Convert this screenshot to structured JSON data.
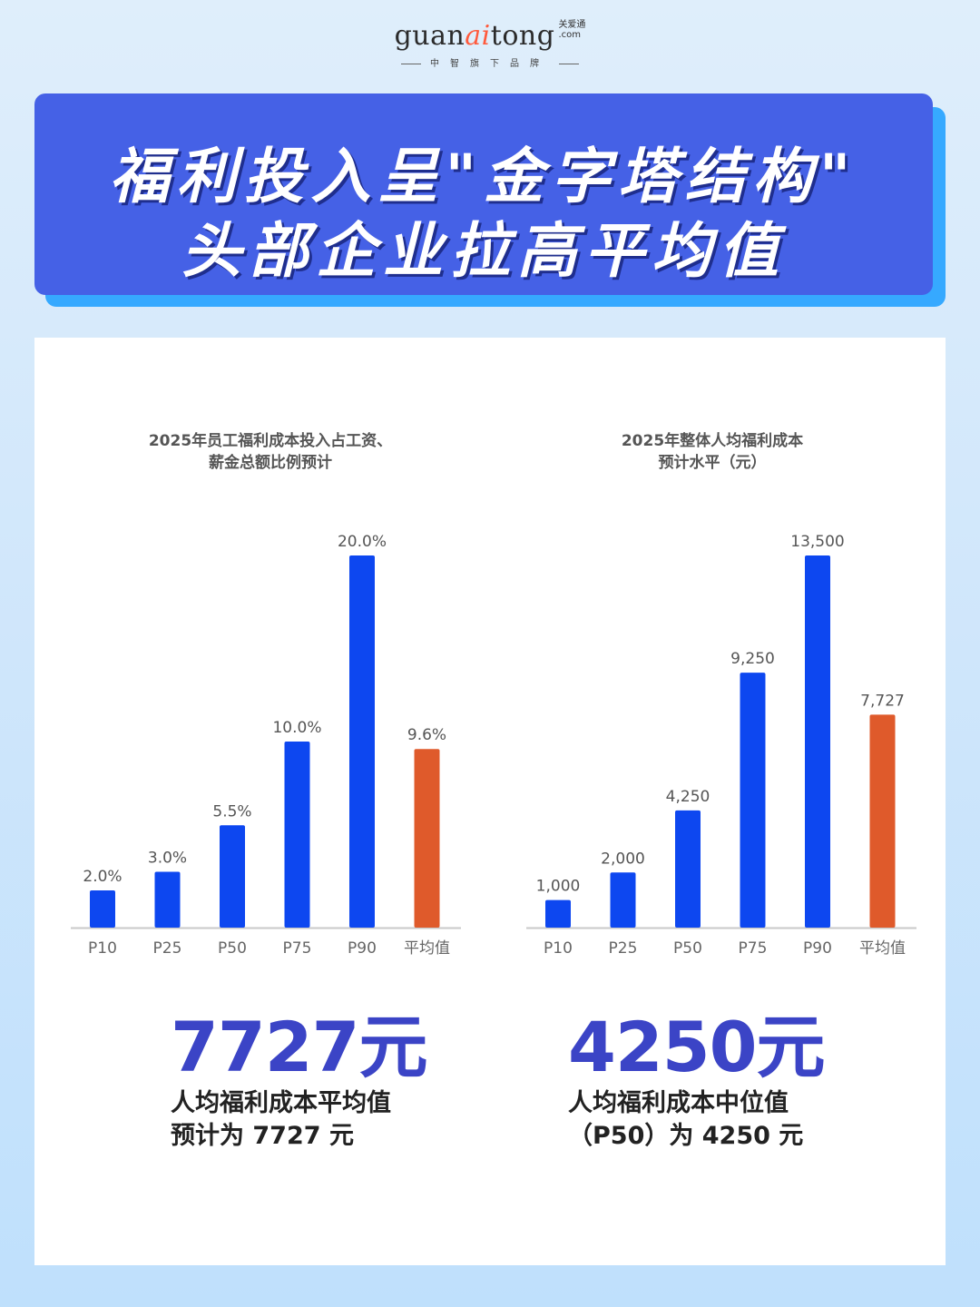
{
  "brand": {
    "logo_pre": "guan",
    "logo_ai": "ai",
    "logo_post": "tong",
    "logo_side_top": "关爱通",
    "logo_side_bottom": ".com",
    "tagline": "中智旗下品牌"
  },
  "banner": {
    "line1": "福利投入呈\"金字塔结构\"",
    "line2": "头部企业拉高平均值",
    "bg_color": "#4561e6",
    "shadow_color": "#36a9ff"
  },
  "colors": {
    "bar_blue": "#0d47f0",
    "bar_orange": "#df5a2b",
    "stat_blue": "#3b44c6"
  },
  "chart_data": [
    {
      "type": "bar",
      "title_line1": "2025年员工福利成本投入占工资、",
      "title_line2": "薪金总额比例预计",
      "categories": [
        "P10",
        "P25",
        "P50",
        "P75",
        "P90",
        "平均值"
      ],
      "values": [
        2.0,
        3.0,
        5.5,
        10.0,
        20.0,
        9.6
      ],
      "value_labels": [
        "2.0%",
        "3.0%",
        "5.5%",
        "10.0%",
        "20.0%",
        "9.6%"
      ],
      "unit": "%",
      "ylim": [
        0,
        20
      ],
      "grid": false,
      "highlight_category": "平均值"
    },
    {
      "type": "bar",
      "title_line1": "2025年整体人均福利成本",
      "title_line2": "预计水平（元）",
      "categories": [
        "P10",
        "P25",
        "P50",
        "P75",
        "P90",
        "平均值"
      ],
      "values": [
        1000,
        2000,
        4250,
        9250,
        13500,
        7727
      ],
      "value_labels": [
        "1,000",
        "2,000",
        "4,250",
        "9,250",
        "13,500",
        "7,727"
      ],
      "unit": "元",
      "ylim": [
        0,
        13500
      ],
      "grid": false,
      "highlight_category": "平均值"
    }
  ],
  "stats": [
    {
      "value": "7727元",
      "desc_line1": "人均福利成本平均值",
      "desc_line2": "预计为 7727 元"
    },
    {
      "value": "4250元",
      "desc_line1": "人均福利成本中位值",
      "desc_line2": "（P50）为 4250 元"
    }
  ]
}
